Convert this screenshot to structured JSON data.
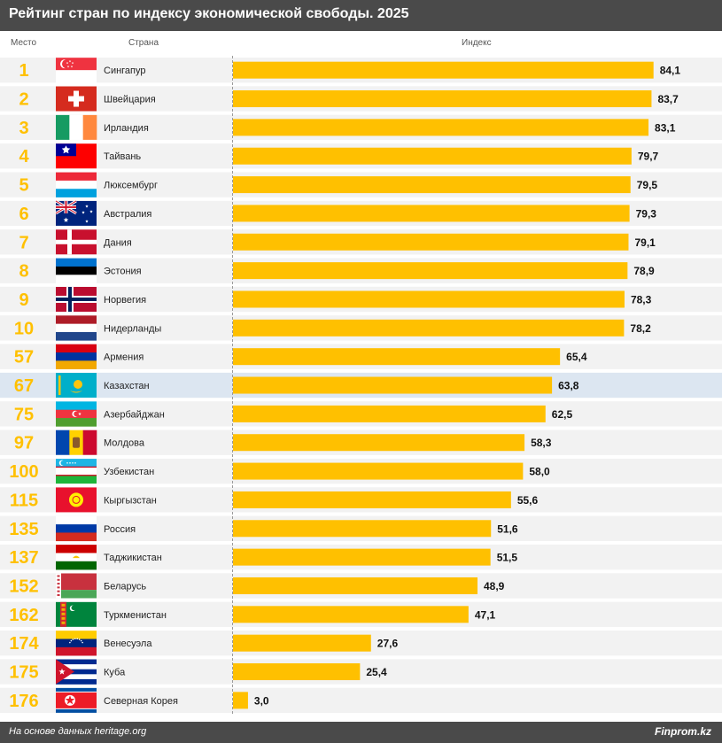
{
  "header": {
    "title": "Рейтинг стран по индексу экономической свободы. 2025"
  },
  "columns": {
    "rank": "Место",
    "country": "Страна",
    "index": "Индекс"
  },
  "footer": {
    "source": "На основе данных heritage.org",
    "brand": "Finprom.kz"
  },
  "colors": {
    "bar": "#ffc000",
    "rank_text": "#ffc000",
    "row_band": "#f2f2f2",
    "highlight_row": "#dce6f1",
    "header_bg": "#4a4a4a"
  },
  "chart_data": {
    "type": "bar",
    "orientation": "horizontal",
    "title": "Рейтинг стран по индексу экономической свободы. 2025",
    "xlabel": "Индекс",
    "ylabel": "Страна",
    "xlim": [
      0,
      90
    ],
    "grid": false,
    "highlight": "Казахстан",
    "rows": [
      {
        "rank": "1",
        "country": "Сингапур",
        "value": 84.1,
        "label": "84,1",
        "flag": "singapore-flag"
      },
      {
        "rank": "2",
        "country": "Швейцария",
        "value": 83.7,
        "label": "83,7",
        "flag": "switzerland-flag"
      },
      {
        "rank": "3",
        "country": "Ирландия",
        "value": 83.1,
        "label": "83,1",
        "flag": "ireland-flag"
      },
      {
        "rank": "4",
        "country": "Тайвань",
        "value": 79.7,
        "label": "79,7",
        "flag": "taiwan-flag"
      },
      {
        "rank": "5",
        "country": "Люксембург",
        "value": 79.5,
        "label": "79,5",
        "flag": "luxembourg-flag"
      },
      {
        "rank": "6",
        "country": "Австралия",
        "value": 79.3,
        "label": "79,3",
        "flag": "australia-flag"
      },
      {
        "rank": "7",
        "country": "Дания",
        "value": 79.1,
        "label": "79,1",
        "flag": "denmark-flag"
      },
      {
        "rank": "8",
        "country": "Эстония",
        "value": 78.9,
        "label": "78,9",
        "flag": "estonia-flag"
      },
      {
        "rank": "9",
        "country": "Норвегия",
        "value": 78.3,
        "label": "78,3",
        "flag": "norway-flag"
      },
      {
        "rank": "10",
        "country": "Нидерланды",
        "value": 78.2,
        "label": "78,2",
        "flag": "netherlands-flag"
      },
      {
        "rank": "57",
        "country": "Армения",
        "value": 65.4,
        "label": "65,4",
        "flag": "armenia-flag"
      },
      {
        "rank": "67",
        "country": "Казахстан",
        "value": 63.8,
        "label": "63,8",
        "flag": "kazakhstan-flag"
      },
      {
        "rank": "75",
        "country": "Азербайджан",
        "value": 62.5,
        "label": "62,5",
        "flag": "azerbaijan-flag"
      },
      {
        "rank": "97",
        "country": "Молдова",
        "value": 58.3,
        "label": "58,3",
        "flag": "moldova-flag"
      },
      {
        "rank": "100",
        "country": "Узбекистан",
        "value": 58.0,
        "label": "58,0",
        "flag": "uzbekistan-flag"
      },
      {
        "rank": "115",
        "country": "Кыргызстан",
        "value": 55.6,
        "label": "55,6",
        "flag": "kyrgyzstan-flag"
      },
      {
        "rank": "135",
        "country": "Россия",
        "value": 51.6,
        "label": "51,6",
        "flag": "russia-flag"
      },
      {
        "rank": "137",
        "country": "Таджикистан",
        "value": 51.5,
        "label": "51,5",
        "flag": "tajikistan-flag"
      },
      {
        "rank": "152",
        "country": "Беларусь",
        "value": 48.9,
        "label": "48,9",
        "flag": "belarus-flag"
      },
      {
        "rank": "162",
        "country": "Туркменистан",
        "value": 47.1,
        "label": "47,1",
        "flag": "turkmenistan-flag"
      },
      {
        "rank": "174",
        "country": "Венесуэла",
        "value": 27.6,
        "label": "27,6",
        "flag": "venezuela-flag"
      },
      {
        "rank": "175",
        "country": "Куба",
        "value": 25.4,
        "label": "25,4",
        "flag": "cuba-flag"
      },
      {
        "rank": "176",
        "country": "Северная Корея",
        "value": 3.0,
        "label": "3,0",
        "flag": "north-korea-flag"
      }
    ]
  }
}
